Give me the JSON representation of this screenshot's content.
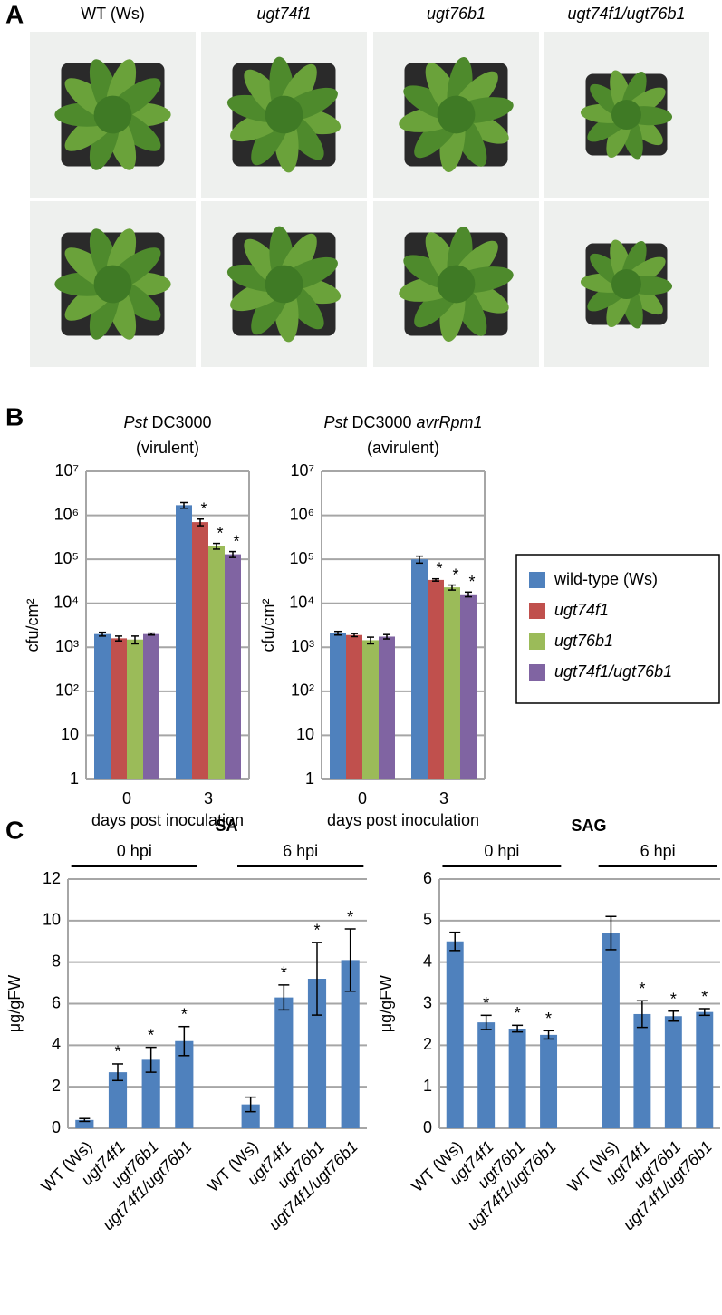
{
  "panel_labels": [
    "A",
    "B",
    "C"
  ],
  "photos": {
    "columns": [
      "WT (Ws)",
      "ugt74f1",
      "ugt76b1",
      "ugt74f1/ugt76b1"
    ],
    "italic": [
      false,
      true,
      true,
      true
    ]
  },
  "legend": {
    "chart": 0
  },
  "chart_data": [
    {
      "type": "bar",
      "title_lines": [
        [
          {
            "text": "Pst",
            "italic": true
          },
          {
            "text": " DC3000"
          }
        ],
        [
          {
            "text": "(virulent)"
          }
        ]
      ],
      "categories": [
        "0",
        "3"
      ],
      "xlabel": "days post inoculation",
      "ylabel": "cfu/cm²",
      "log_scale": true,
      "ylim": [
        1,
        10000000
      ],
      "yticks": [
        1,
        10,
        {
          "value": 100,
          "label": "10²"
        },
        {
          "value": 1000,
          "label": "10³"
        },
        {
          "value": 10000,
          "label": "10⁴"
        },
        {
          "value": 100000,
          "label": "10⁵"
        },
        {
          "value": 1000000,
          "label": "10⁶"
        },
        {
          "value": 10000000,
          "label": "10⁷"
        }
      ],
      "grid": true,
      "series": [
        {
          "name": "wild-type (Ws)",
          "italic": false,
          "color": "#4f81bd",
          "values": [
            2000,
            1700000
          ],
          "errors": [
            200,
            250000
          ],
          "stars": [
            null,
            null
          ]
        },
        {
          "name": "ugt74f1",
          "italic": true,
          "color": "#c0504d",
          "values": [
            1600,
            700000
          ],
          "errors": [
            200,
            120000
          ],
          "stars": [
            null,
            "*"
          ]
        },
        {
          "name": "ugt76b1",
          "italic": true,
          "color": "#9bbb59",
          "values": [
            1500,
            200000
          ],
          "errors": [
            300,
            30000
          ],
          "stars": [
            null,
            "*"
          ]
        },
        {
          "name": "ugt74f1/ugt76b1",
          "italic": true,
          "color": "#8064a2",
          "values": [
            2000,
            130000
          ],
          "errors": [
            100,
            20000
          ],
          "stars": [
            null,
            "*"
          ]
        }
      ]
    },
    {
      "type": "bar",
      "title_lines": [
        [
          {
            "text": "Pst",
            "italic": true
          },
          {
            "text": " DC3000 "
          },
          {
            "text": "avrRpm1",
            "italic": true
          }
        ],
        [
          {
            "text": "(avirulent)"
          }
        ]
      ],
      "categories": [
        "0",
        "3"
      ],
      "xlabel": "days post inoculation",
      "ylabel": "cfu/cm²",
      "log_scale": true,
      "ylim": [
        1,
        10000000
      ],
      "yticks": [
        1,
        10,
        {
          "value": 100,
          "label": "10²"
        },
        {
          "value": 1000,
          "label": "10³"
        },
        {
          "value": 10000,
          "label": "10⁴"
        },
        {
          "value": 100000,
          "label": "10⁵"
        },
        {
          "value": 1000000,
          "label": "10⁶"
        },
        {
          "value": 10000000,
          "label": "10⁷"
        }
      ],
      "grid": true,
      "series": [
        {
          "name": "wild-type (Ws)",
          "italic": false,
          "color": "#4f81bd",
          "values": [
            2100,
            100000
          ],
          "errors": [
            200,
            18000
          ],
          "stars": [
            null,
            null
          ]
        },
        {
          "name": "ugt74f1",
          "italic": true,
          "color": "#c0504d",
          "values": [
            1900,
            34000
          ],
          "errors": [
            150,
            2000
          ],
          "stars": [
            null,
            "*"
          ]
        },
        {
          "name": "ugt76b1",
          "italic": true,
          "color": "#9bbb59",
          "values": [
            1450,
            23000
          ],
          "errors": [
            250,
            3000
          ],
          "stars": [
            null,
            "*"
          ]
        },
        {
          "name": "ugt74f1/ugt76b1",
          "italic": true,
          "color": "#8064a2",
          "values": [
            1750,
            16000
          ],
          "errors": [
            200,
            2000
          ],
          "stars": [
            null,
            "*"
          ]
        }
      ]
    },
    {
      "type": "bar",
      "title": "SA",
      "groups": [
        "0 hpi",
        "6 hpi"
      ],
      "ylabel": "μg/gFW",
      "categories": [
        "WT (Ws)",
        "ugt74f1",
        "ugt76b1",
        "ugt74f1/ugt76b1",
        null,
        "WT (Ws)",
        "ugt74f1",
        "ugt76b1",
        "ugt74f1/ugt76b1"
      ],
      "categories_italic": [
        false,
        true,
        true,
        true,
        null,
        false,
        true,
        true,
        true
      ],
      "values": [
        0.4,
        2.7,
        3.3,
        4.2,
        null,
        1.15,
        6.3,
        7.2,
        8.1
      ],
      "errors": [
        0.07,
        0.4,
        0.6,
        0.7,
        null,
        0.35,
        0.6,
        1.75,
        1.5
      ],
      "stars": [
        null,
        "*",
        "*",
        "*",
        null,
        null,
        "*",
        "*",
        "*"
      ],
      "color": "#4f81bd",
      "ylim": [
        0,
        12
      ],
      "yticks": [
        0,
        2,
        4,
        6,
        8,
        10,
        12
      ],
      "grid": true
    },
    {
      "type": "bar",
      "title": "SAG",
      "groups": [
        "0 hpi",
        "6 hpi"
      ],
      "ylabel": "μg/gFW",
      "categories": [
        "WT (Ws)",
        "ugt74f1",
        "ugt76b1",
        "ugt74f1/ugt76b1",
        null,
        "WT (Ws)",
        "ugt74f1",
        "ugt76b1",
        "ugt74f1/ugt76b1"
      ],
      "categories_italic": [
        false,
        true,
        true,
        true,
        null,
        false,
        true,
        true,
        true
      ],
      "values": [
        4.5,
        2.55,
        2.4,
        2.25,
        null,
        4.7,
        2.75,
        2.7,
        2.8
      ],
      "errors": [
        0.22,
        0.17,
        0.08,
        0.1,
        null,
        0.4,
        0.32,
        0.12,
        0.08
      ],
      "stars": [
        null,
        "*",
        "*",
        "*",
        null,
        null,
        "*",
        "*",
        "*"
      ],
      "color": "#4f81bd",
      "ylim": [
        0,
        6
      ],
      "yticks": [
        0,
        1,
        2,
        3,
        4,
        5,
        6
      ],
      "grid": true
    }
  ]
}
